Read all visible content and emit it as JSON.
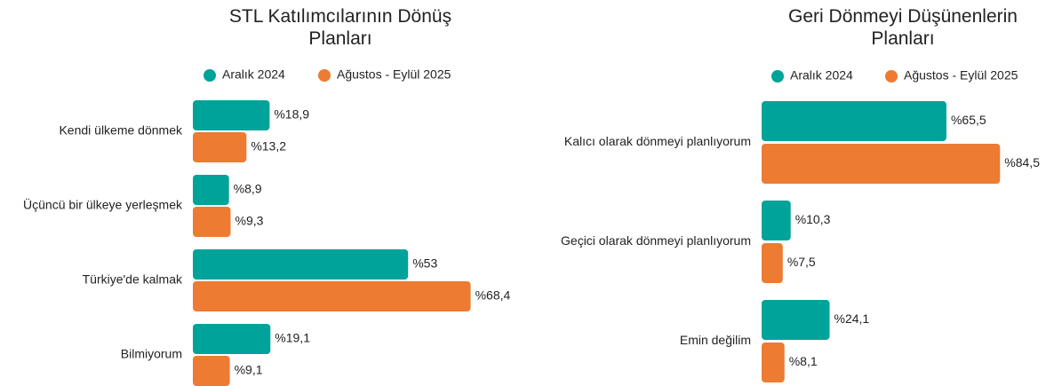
{
  "chart_data": [
    {
      "type": "bar",
      "orientation": "horizontal",
      "title": "STL Katılımcılarının Dönüş Planları",
      "categories": [
        "Kendi ülkeme dönmek",
        "Üçüncü bir ülkeye yerleşmek",
        "Türkiye'de kalmak",
        "Bilmiyorum"
      ],
      "series": [
        {
          "name": "Aralık 2024",
          "color": "#00a39a",
          "values": [
            18.9,
            8.9,
            53,
            19.1
          ],
          "value_labels": [
            "%18,9",
            "%8,9",
            "%53",
            "%19,1"
          ]
        },
        {
          "name": "Ağustos - Eylül 2025",
          "color": "#ed7b31",
          "values": [
            13.2,
            9.3,
            68.4,
            9.1
          ],
          "value_labels": [
            "%13,2",
            "%9,3",
            "%68,4",
            "%9,1"
          ]
        }
      ]
    },
    {
      "type": "bar",
      "orientation": "horizontal",
      "title": "Geri Dönmeyi Düşünenlerin Planları",
      "categories": [
        "Kalıcı olarak dönmeyi planlıyorum",
        "Geçici olarak dönmeyi planlıyorum",
        "Emin değilim"
      ],
      "series": [
        {
          "name": "Aralık 2024",
          "color": "#00a39a",
          "values": [
            65.5,
            10.3,
            24.1
          ],
          "value_labels": [
            "%65,5",
            "%10,3",
            "%24,1"
          ]
        },
        {
          "name": "Ağustos - Eylül 2025",
          "color": "#ed7b31",
          "values": [
            84.5,
            7.5,
            8.1
          ],
          "value_labels": [
            "%84,5",
            "%7,5",
            "%8,1"
          ]
        }
      ]
    }
  ]
}
